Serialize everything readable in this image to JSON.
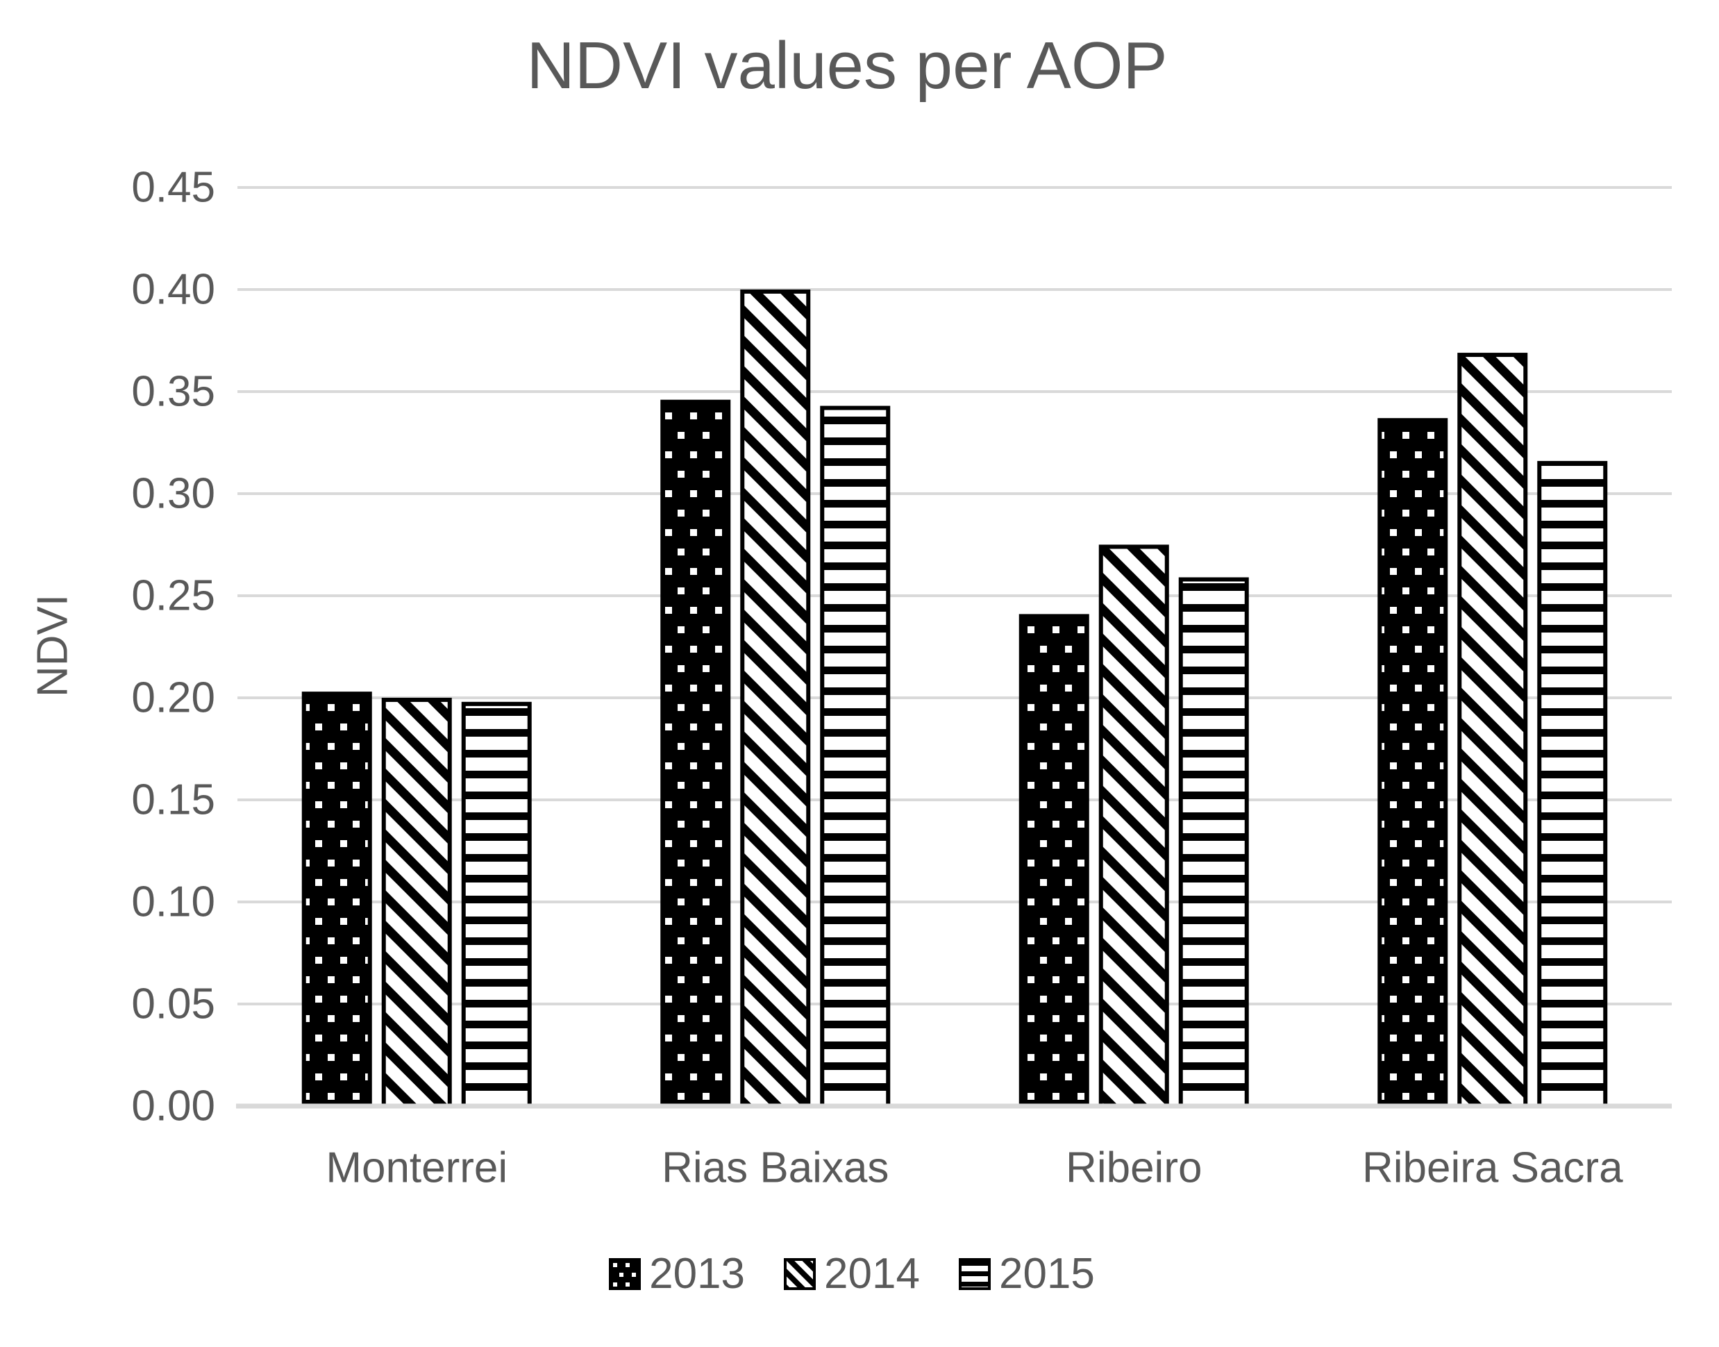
{
  "chart_data": {
    "type": "bar",
    "title": "NDVI values per AOP",
    "xlabel": "",
    "ylabel": "NDVI",
    "categories": [
      "Monterrei",
      "Rias Baixas",
      "Ribeiro",
      "Ribeira Sacra"
    ],
    "series": [
      {
        "name": "2013",
        "pattern": "black-white-dots",
        "values": [
          0.202,
          0.345,
          0.24,
          0.336
        ]
      },
      {
        "name": "2014",
        "pattern": "diagonal-stripes",
        "values": [
          0.199,
          0.399,
          0.274,
          0.368
        ]
      },
      {
        "name": "2015",
        "pattern": "horizontal-stripes",
        "values": [
          0.197,
          0.342,
          0.258,
          0.315
        ]
      }
    ],
    "ylim": [
      0,
      0.45
    ],
    "ytick_step": 0.05,
    "ytick_labels": [
      "0.00",
      "0.05",
      "0.10",
      "0.15",
      "0.20",
      "0.25",
      "0.30",
      "0.35",
      "0.40",
      "0.45"
    ],
    "grid": true,
    "legend_position": "bottom",
    "colors": {
      "bar": "#000000",
      "text": "#595959",
      "gridline": "#d9d9d9",
      "axis_line": "#d9d9d9",
      "background": "#ffffff"
    }
  }
}
